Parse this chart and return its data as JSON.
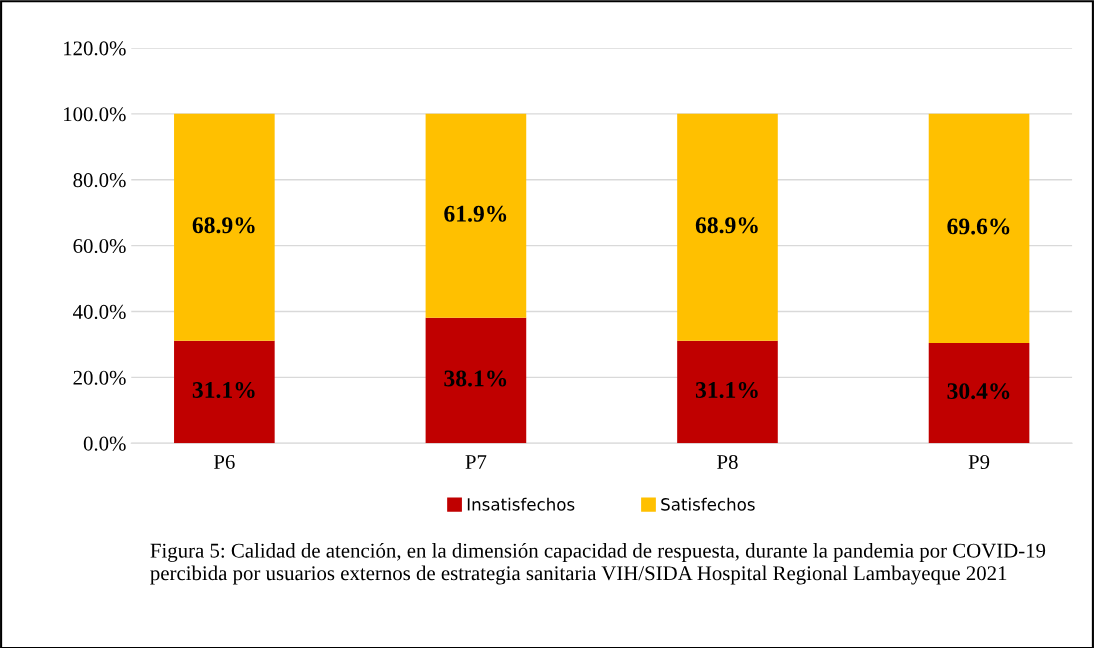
{
  "chart_data": {
    "type": "bar",
    "stacked": true,
    "categories": [
      "P6",
      "P7",
      "P8",
      "P9"
    ],
    "series": [
      {
        "name": "Insatisfechos",
        "color": "#c00000",
        "values": [
          31.1,
          38.1,
          31.1,
          30.4
        ],
        "value_labels": [
          "31.1%",
          "38.1%",
          "31.1%",
          "30.4%"
        ]
      },
      {
        "name": "Satisfechos",
        "color": "#ffc000",
        "values": [
          68.9,
          61.9,
          68.9,
          69.6
        ],
        "value_labels": [
          "68.9%",
          "61.9%",
          "68.9%",
          "69.6%"
        ]
      }
    ],
    "ylim": [
      0,
      120
    ],
    "yticks": [
      {
        "value": 0,
        "label": "0.0%"
      },
      {
        "value": 20,
        "label": "20.0%"
      },
      {
        "value": 40,
        "label": "40.0%"
      },
      {
        "value": 60,
        "label": "60.0%"
      },
      {
        "value": 80,
        "label": "80.0%"
      },
      {
        "value": 100,
        "label": "100.0%"
      },
      {
        "value": 120,
        "label": "120.0%"
      }
    ],
    "grid": "y",
    "legend": "bottom",
    "annotations": [
      "Figura 5: Calidad de atención, en la dimensión capacidad de respuesta, durante la pandemia por COVID-19 percibida por usuarios externos de estrategia sanitaria VIH/SIDA Hospital Regional Lambayeque 2021"
    ]
  }
}
